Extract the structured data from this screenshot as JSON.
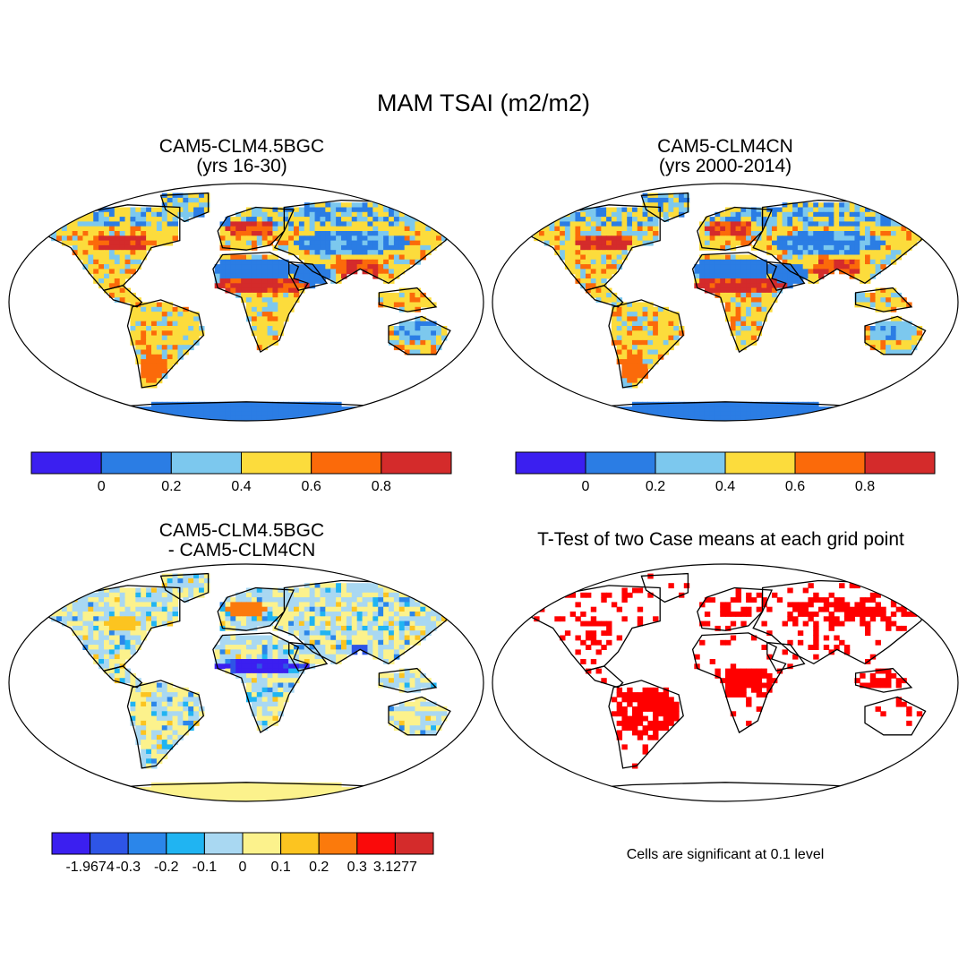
{
  "title": "MAM TSAI (m2/m2)",
  "panels": {
    "top_left": {
      "title_line1": "CAM5-CLM4.5BGC",
      "title_line2": "(yrs 16-30)"
    },
    "top_right": {
      "title_line1": "CAM5-CLM4CN",
      "title_line2": "(yrs 2000-2014)"
    },
    "bottom_left": {
      "title_line1": "CAM5-CLM4.5BGC",
      "title_line2": "- CAM5-CLM4CN"
    },
    "bottom_right": {
      "title_line1": "T-Test of two Case means at each grid point"
    }
  },
  "colorbars": {
    "absolute": {
      "colors": [
        "#3b1ff0",
        "#2b7de4",
        "#7cc8ee",
        "#fcdc3c",
        "#fb6a0a",
        "#d42b2b"
      ],
      "tick_labels": [
        "0",
        "0.2",
        "0.4",
        "0.6",
        "0.8"
      ]
    },
    "difference": {
      "colors": [
        "#3b1ff0",
        "#2e55e6",
        "#2b86ea",
        "#20b4f2",
        "#a9d8f2",
        "#fcf28c",
        "#fcc420",
        "#fb7a0c",
        "#fa0a0a",
        "#d42b2b"
      ],
      "tick_labels": [
        "-1.9674",
        "-0.3",
        "-0.2",
        "-0.1",
        "0",
        "0.1",
        "0.2",
        "0.3",
        "3.1277"
      ]
    }
  },
  "significance_color": "#ff0000",
  "note": "Cells are significant at 0.1 level"
}
